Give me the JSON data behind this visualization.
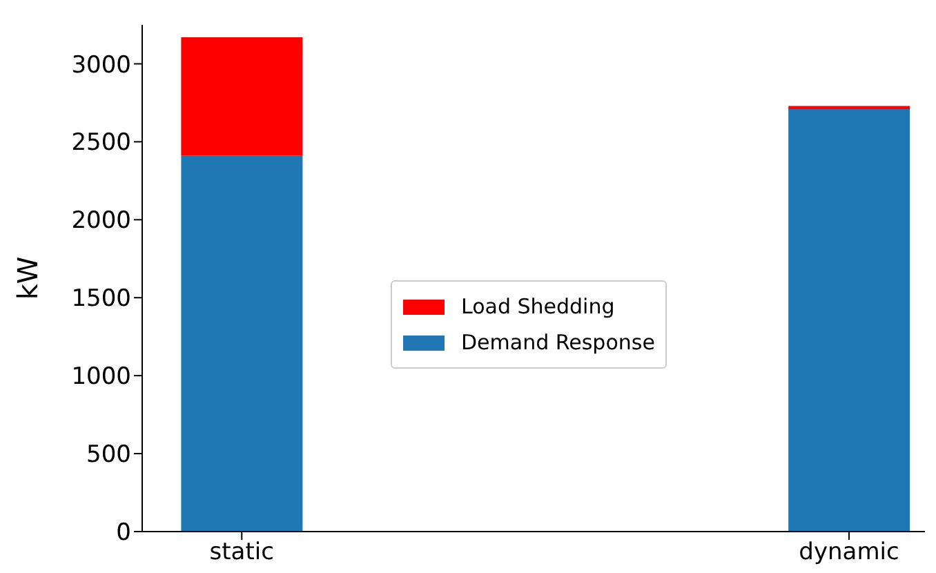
{
  "chart_data": {
    "type": "bar",
    "stacked": true,
    "ylabel": "kW",
    "categories": [
      "static",
      "dynamic"
    ],
    "series": [
      {
        "name": "Demand Response",
        "color": "#1f77b4",
        "values": [
          2410,
          2710
        ]
      },
      {
        "name": "Load Shedding",
        "color": "#ff0000",
        "values": [
          760,
          20
        ]
      }
    ],
    "ylim": [
      0,
      3250
    ],
    "yticks": [
      0,
      500,
      1000,
      1500,
      2000,
      2500,
      3000
    ],
    "grid": false,
    "legend": "center"
  }
}
